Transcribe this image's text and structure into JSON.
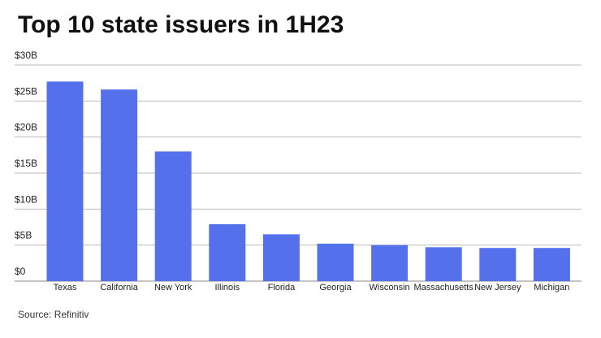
{
  "chart_data": {
    "type": "bar",
    "title": "Top 10 state issuers in 1H23",
    "categories": [
      "Texas",
      "California",
      "New York",
      "Illinois",
      "Florida",
      "Georgia",
      "Wisconsin",
      "Massachusetts",
      "New Jersey",
      "Michigan"
    ],
    "values": [
      27.7,
      26.6,
      18.0,
      7.9,
      6.5,
      5.2,
      5.0,
      4.7,
      4.6,
      4.6
    ],
    "color": "#5470eb",
    "ylim": [
      0,
      30
    ],
    "yticks": [
      {
        "value": 0,
        "label": "$0"
      },
      {
        "value": 5,
        "label": "$5B"
      },
      {
        "value": 10,
        "label": "$10B"
      },
      {
        "value": 15,
        "label": "$15B"
      },
      {
        "value": 20,
        "label": "$20B"
      },
      {
        "value": 25,
        "label": "$25B"
      },
      {
        "value": 30,
        "label": "$30B"
      }
    ],
    "grid": true,
    "source": "Source: Refinitiv"
  }
}
